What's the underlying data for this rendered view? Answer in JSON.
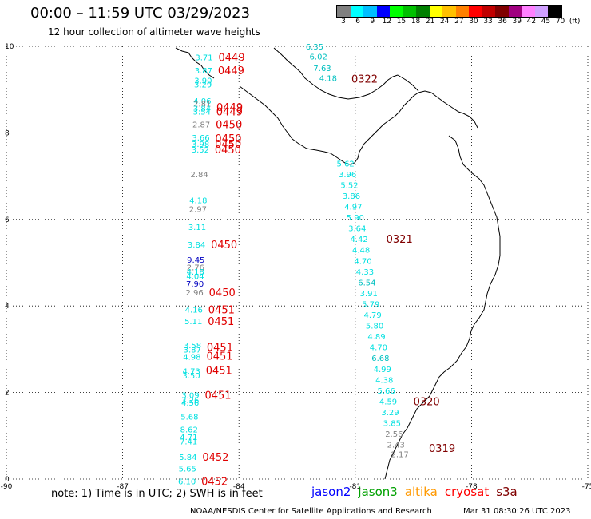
{
  "header": {
    "title": "00:00 – 11:59 UTC 03/29/2023",
    "subtitle": "12 hour collection of altimeter wave heights"
  },
  "legend": {
    "colors": [
      "#808080",
      "#00ffff",
      "#00bfff",
      "#0000ff",
      "#00ff00",
      "#00c000",
      "#008000",
      "#ffff00",
      "#ffc000",
      "#ff8000",
      "#ff0000",
      "#c00000",
      "#800000",
      "#a00080",
      "#ff80ff",
      "#d0a0ff",
      "#000000"
    ],
    "labels": [
      "3",
      "6",
      "9",
      "12",
      "15",
      "18",
      "21",
      "24",
      "27",
      "30",
      "33",
      "36",
      "39",
      "42",
      "45",
      "70",
      "(ft)"
    ]
  },
  "axes": {
    "x_ticks": [
      {
        "lon": -90,
        "label": "-90"
      },
      {
        "lon": -87,
        "label": "-87"
      },
      {
        "lon": -84,
        "label": "-84"
      },
      {
        "lon": -81,
        "label": "-81"
      },
      {
        "lon": -78,
        "label": "-78"
      },
      {
        "lon": -75,
        "label": "-75"
      }
    ],
    "y_ticks": [
      {
        "lat": 10,
        "label": "10"
      },
      {
        "lat": 8,
        "label": "8"
      },
      {
        "lat": 6,
        "label": "6"
      },
      {
        "lat": 4,
        "label": "4"
      },
      {
        "lat": 2,
        "label": "2"
      },
      {
        "lat": 0,
        "label": "0"
      }
    ],
    "xlim": [
      -90,
      -75
    ],
    "ylim": [
      0,
      10
    ],
    "grid": true
  },
  "tracks": {
    "left": [
      {
        "lat": 9.75,
        "swh": "3.71",
        "color": "#00e0e0"
      },
      {
        "lat": 9.45,
        "swh": "3.87",
        "color": "#00e0e0"
      },
      {
        "lat": 9.22,
        "swh": "3.90",
        "color": "#00e0e0"
      },
      {
        "lat": 9.12,
        "swh": "3.29",
        "color": "#00e0e0"
      },
      {
        "lat": 8.75,
        "swh": "4.06",
        "color": "#00e0e0"
      },
      {
        "lat": 8.68,
        "swh": "2.81",
        "color": "#808080"
      },
      {
        "lat": 8.57,
        "swh": "3.84",
        "color": "#00e0e0"
      },
      {
        "lat": 8.5,
        "swh": "3.54",
        "color": "#00e0e0"
      },
      {
        "lat": 8.2,
        "swh": "2.87",
        "color": "#808080"
      },
      {
        "lat": 7.9,
        "swh": "3.66",
        "color": "#00e0e0"
      },
      {
        "lat": 7.75,
        "swh": "3.98",
        "color": "#00e0e0"
      },
      {
        "lat": 7.62,
        "swh": "3.52",
        "color": "#00e0e0"
      },
      {
        "lat": 7.05,
        "swh": "2.84",
        "color": "#808080"
      },
      {
        "lat": 6.45,
        "swh": "4.18",
        "color": "#00e0e0"
      },
      {
        "lat": 6.25,
        "swh": "2.97",
        "color": "#808080"
      },
      {
        "lat": 5.83,
        "swh": "3.11",
        "color": "#00e0e0"
      },
      {
        "lat": 5.42,
        "swh": "3.84",
        "color": "#00e0e0"
      },
      {
        "lat": 5.07,
        "swh": "9.45",
        "color": "#0000c0"
      },
      {
        "lat": 4.9,
        "swh": "2.76",
        "color": "#808080"
      },
      {
        "lat": 4.8,
        "swh": "4.18",
        "color": "#00e0e0"
      },
      {
        "lat": 4.7,
        "swh": "4.04",
        "color": "#00e0e0"
      },
      {
        "lat": 4.52,
        "swh": "7.90",
        "color": "#0000c0"
      },
      {
        "lat": 4.32,
        "swh": "2.96",
        "color": "#808080"
      },
      {
        "lat": 3.92,
        "swh": "4.16",
        "color": "#00e0e0"
      },
      {
        "lat": 3.65,
        "swh": "5.11",
        "color": "#00e0e0"
      },
      {
        "lat": 3.1,
        "swh": "3.58",
        "color": "#00e0e0"
      },
      {
        "lat": 3.0,
        "swh": "3.87",
        "color": "#00e0e0"
      },
      {
        "lat": 2.83,
        "swh": "4.98",
        "color": "#00e0e0"
      },
      {
        "lat": 2.5,
        "swh": "4.73",
        "color": "#00e0e0"
      },
      {
        "lat": 2.4,
        "swh": "3.50",
        "color": "#00e0e0"
      },
      {
        "lat": 1.95,
        "swh": "3.09",
        "color": "#00e0e0"
      },
      {
        "lat": 1.83,
        "swh": "3.26",
        "color": "#00e0e0"
      },
      {
        "lat": 1.77,
        "swh": "4.56",
        "color": "#00e0e0"
      },
      {
        "lat": 1.45,
        "swh": "5.68",
        "color": "#00e0e0"
      },
      {
        "lat": 1.15,
        "swh": "8.62",
        "color": "#00e0e0"
      },
      {
        "lat": 0.98,
        "swh": "4.71",
        "color": "#00e0e0"
      },
      {
        "lat": 0.88,
        "swh": "7.41",
        "color": "#00e0e0"
      },
      {
        "lat": 0.52,
        "swh": "5.84",
        "color": "#00e0e0"
      },
      {
        "lat": 0.25,
        "swh": "5.65",
        "color": "#00e0e0"
      },
      {
        "lat": -0.05,
        "swh": "6.10",
        "color": "#00e0e0"
      }
    ],
    "left_times": [
      {
        "lat": 9.75,
        "text": "0449",
        "color": "#e00000"
      },
      {
        "lat": 9.45,
        "text": "0449",
        "color": "#e00000"
      },
      {
        "lat": 8.6,
        "text": "0449",
        "color": "#e00000"
      },
      {
        "lat": 8.5,
        "text": "0449",
        "color": "#e00000"
      },
      {
        "lat": 8.2,
        "text": "0450",
        "color": "#e00000"
      },
      {
        "lat": 7.88,
        "text": "0450",
        "color": "#e00000"
      },
      {
        "lat": 7.75,
        "text": "0450",
        "color": "#e00000"
      },
      {
        "lat": 7.62,
        "text": "0450",
        "color": "#e00000"
      },
      {
        "lat": 5.42,
        "text": "0450",
        "color": "#e00000"
      },
      {
        "lat": 4.32,
        "text": "0450",
        "color": "#e00000"
      },
      {
        "lat": 3.92,
        "text": "0451",
        "color": "#e00000"
      },
      {
        "lat": 3.65,
        "text": "0451",
        "color": "#e00000"
      },
      {
        "lat": 3.05,
        "text": "0451",
        "color": "#e00000"
      },
      {
        "lat": 2.85,
        "text": "0451",
        "color": "#e00000"
      },
      {
        "lat": 2.52,
        "text": "0451",
        "color": "#e00000"
      },
      {
        "lat": 1.95,
        "text": "0451",
        "color": "#e00000"
      },
      {
        "lat": 0.52,
        "text": "0452",
        "color": "#e00000"
      },
      {
        "lat": -0.05,
        "text": "0452",
        "color": "#e00000"
      }
    ],
    "right": [
      {
        "lat": 10.0,
        "lon": -82.05,
        "swh": "6.35",
        "color": "#00c0c0"
      },
      {
        "lat": 9.77,
        "lon": -81.95,
        "swh": "6.02",
        "color": "#00c0c0"
      },
      {
        "lat": 9.5,
        "lon": -81.85,
        "swh": "7.63",
        "color": "#00c0c0"
      },
      {
        "lat": 9.27,
        "lon": -81.7,
        "swh": "4.18",
        "color": "#00c0c0"
      },
      {
        "lat": 7.3,
        "lon": -81.25,
        "swh": "5.62",
        "color": "#00e0e0"
      },
      {
        "lat": 7.05,
        "lon": -81.2,
        "swh": "3.96",
        "color": "#00e0e0"
      },
      {
        "lat": 6.8,
        "lon": -81.15,
        "swh": "5.52",
        "color": "#00e0e0"
      },
      {
        "lat": 6.55,
        "lon": -81.1,
        "swh": "3.86",
        "color": "#00e0e0"
      },
      {
        "lat": 6.3,
        "lon": -81.05,
        "swh": "4.97",
        "color": "#00e0e0"
      },
      {
        "lat": 6.05,
        "lon": -81.0,
        "swh": "5.90",
        "color": "#00e0e0"
      },
      {
        "lat": 5.8,
        "lon": -80.95,
        "swh": "3.64",
        "color": "#00e0e0"
      },
      {
        "lat": 5.55,
        "lon": -80.9,
        "swh": "4.42",
        "color": "#00e0e0"
      },
      {
        "lat": 5.3,
        "lon": -80.85,
        "swh": "4.48",
        "color": "#00e0e0"
      },
      {
        "lat": 5.05,
        "lon": -80.8,
        "swh": "4.70",
        "color": "#00e0e0"
      },
      {
        "lat": 4.8,
        "lon": -80.75,
        "swh": "4.33",
        "color": "#00e0e0"
      },
      {
        "lat": 4.55,
        "lon": -80.7,
        "swh": "6.54",
        "color": "#00c0c0"
      },
      {
        "lat": 4.3,
        "lon": -80.65,
        "swh": "3.91",
        "color": "#00e0e0"
      },
      {
        "lat": 4.05,
        "lon": -80.6,
        "swh": "5.79",
        "color": "#00e0e0"
      },
      {
        "lat": 3.8,
        "lon": -80.55,
        "swh": "4.79",
        "color": "#00e0e0"
      },
      {
        "lat": 3.55,
        "lon": -80.5,
        "swh": "5.80",
        "color": "#00e0e0"
      },
      {
        "lat": 3.3,
        "lon": -80.45,
        "swh": "4.89",
        "color": "#00e0e0"
      },
      {
        "lat": 3.05,
        "lon": -80.4,
        "swh": "4.70",
        "color": "#00e0e0"
      },
      {
        "lat": 2.8,
        "lon": -80.35,
        "swh": "6.68",
        "color": "#00c0c0"
      },
      {
        "lat": 2.55,
        "lon": -80.3,
        "swh": "4.99",
        "color": "#00e0e0"
      },
      {
        "lat": 2.3,
        "lon": -80.25,
        "swh": "4.38",
        "color": "#00e0e0"
      },
      {
        "lat": 2.05,
        "lon": -80.2,
        "swh": "5.66",
        "color": "#00e0e0"
      },
      {
        "lat": 1.8,
        "lon": -80.15,
        "swh": "4.59",
        "color": "#00e0e0"
      },
      {
        "lat": 1.55,
        "lon": -80.1,
        "swh": "3.29",
        "color": "#00e0e0"
      },
      {
        "lat": 1.3,
        "lon": -80.05,
        "swh": "3.85",
        "color": "#00e0e0"
      },
      {
        "lat": 1.05,
        "lon": -80.0,
        "swh": "2.56",
        "color": "#808080"
      },
      {
        "lat": 0.8,
        "lon": -79.95,
        "swh": "2.43",
        "color": "#808080"
      },
      {
        "lat": 0.58,
        "lon": -79.85,
        "swh": "2.17",
        "color": "#808080"
      }
    ],
    "right_times": [
      {
        "lat": 9.25,
        "lon": -81.1,
        "text": "0322",
        "color": "#800000"
      },
      {
        "lat": 5.55,
        "lon": -80.2,
        "text": "0321",
        "color": "#800000"
      },
      {
        "lat": 1.8,
        "lon": -79.5,
        "text": "0320",
        "color": "#800000"
      },
      {
        "lat": 0.72,
        "lon": -79.1,
        "text": "0319",
        "color": "#800000"
      }
    ]
  },
  "footer": {
    "note": "note: 1) Time is in UTC; 2) SWH is in feet",
    "satellites": [
      {
        "name": "jason2",
        "color": "#0000ff"
      },
      {
        "name": "jason3",
        "color": "#00a000"
      },
      {
        "name": "altika",
        "color": "#ff9900"
      },
      {
        "name": "cryosat",
        "color": "#ff0000"
      },
      {
        "name": "s3a",
        "color": "#800000"
      }
    ],
    "credit": "NOAA/NESDIS Center for Satellite Applications and Research",
    "timestamp": "Mar 31 08:30:26 UTC 2023"
  }
}
